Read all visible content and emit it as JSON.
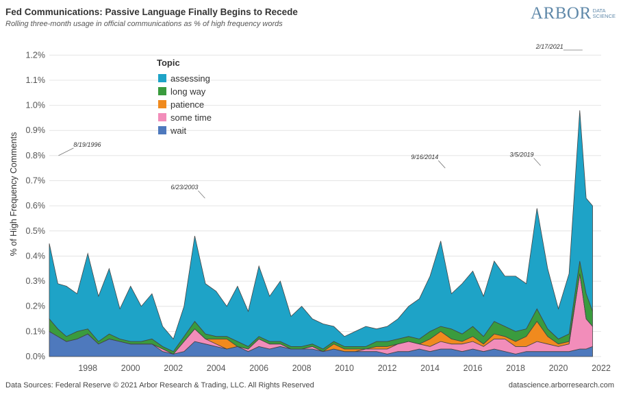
{
  "header": {
    "title": "Fed Communications: Passive Language Finally Begins to Recede",
    "subtitle": "Rolling three-month usage in official communications as % of high frequency words"
  },
  "logo": {
    "main": "ARBOR",
    "sub_top": "DATA",
    "sub_bottom": "SCIENCE",
    "color": "#5f88a9"
  },
  "footer": {
    "source": "Data Sources: Federal Reserve © 2021 Arbor Research & Trading, LLC. All Rights Reserved",
    "site": "datascience.arborresearch.com"
  },
  "chart_data": {
    "type": "area",
    "stacked": true,
    "ylabel": "% of High Frequency Comments",
    "xlabel": "",
    "xlim": [
      1996.2,
      2022.0
    ],
    "ylim": [
      0.0,
      1.25
    ],
    "y_ticks": [
      "0.0%",
      "0.1%",
      "0.2%",
      "0.3%",
      "0.4%",
      "0.5%",
      "0.6%",
      "0.7%",
      "0.8%",
      "0.9%",
      "1.0%",
      "1.1%",
      "1.2%"
    ],
    "x_ticks": [
      "1998",
      "2000",
      "2002",
      "2004",
      "2006",
      "2008",
      "2010",
      "2012",
      "2014",
      "2016",
      "2018",
      "2020",
      "2022"
    ],
    "grid": {
      "horizontal": true,
      "vertical": false
    },
    "legend": {
      "title": "Topic",
      "position": "top-left"
    },
    "x": [
      1996.2,
      1996.6,
      1997.0,
      1997.5,
      1998.0,
      1998.5,
      1999.0,
      1999.5,
      2000.0,
      2000.5,
      2001.0,
      2001.5,
      2002.0,
      2002.5,
      2003.0,
      2003.5,
      2004.0,
      2004.5,
      2005.0,
      2005.5,
      2006.0,
      2006.5,
      2007.0,
      2007.5,
      2008.0,
      2008.5,
      2009.0,
      2009.5,
      2010.0,
      2010.5,
      2011.0,
      2011.5,
      2012.0,
      2012.5,
      2013.0,
      2013.5,
      2014.0,
      2014.5,
      2015.0,
      2015.5,
      2016.0,
      2016.5,
      2017.0,
      2017.5,
      2018.0,
      2018.5,
      2019.0,
      2019.5,
      2020.0,
      2020.5,
      2021.0,
      2021.3,
      2021.6
    ],
    "series": [
      {
        "name": "wait",
        "color": "#4e79bd",
        "values": [
          0.1,
          0.08,
          0.06,
          0.07,
          0.09,
          0.05,
          0.07,
          0.06,
          0.05,
          0.05,
          0.05,
          0.02,
          0.01,
          0.02,
          0.06,
          0.05,
          0.04,
          0.03,
          0.04,
          0.02,
          0.04,
          0.03,
          0.04,
          0.03,
          0.03,
          0.03,
          0.02,
          0.03,
          0.02,
          0.02,
          0.02,
          0.02,
          0.01,
          0.02,
          0.02,
          0.03,
          0.02,
          0.03,
          0.03,
          0.02,
          0.03,
          0.02,
          0.03,
          0.02,
          0.01,
          0.02,
          0.02,
          0.02,
          0.02,
          0.02,
          0.03,
          0.03,
          0.04
        ]
      },
      {
        "name": "some time",
        "color": "#f28dba",
        "values": [
          0.0,
          0.0,
          0.0,
          0.0,
          0.0,
          0.0,
          0.0,
          0.0,
          0.0,
          0.0,
          0.0,
          0.01,
          0.0,
          0.04,
          0.05,
          0.02,
          0.01,
          0.0,
          0.0,
          0.01,
          0.03,
          0.02,
          0.01,
          0.0,
          0.0,
          0.01,
          0.0,
          0.0,
          0.0,
          0.0,
          0.01,
          0.01,
          0.02,
          0.03,
          0.04,
          0.02,
          0.02,
          0.03,
          0.02,
          0.03,
          0.03,
          0.02,
          0.04,
          0.05,
          0.03,
          0.02,
          0.04,
          0.03,
          0.02,
          0.03,
          0.3,
          0.12,
          0.08
        ]
      },
      {
        "name": "patience",
        "color": "#f08a1e",
        "values": [
          0.0,
          0.0,
          0.0,
          0.0,
          0.0,
          0.0,
          0.0,
          0.0,
          0.0,
          0.0,
          0.0,
          0.0,
          0.0,
          0.0,
          0.0,
          0.0,
          0.02,
          0.04,
          0.0,
          0.0,
          0.0,
          0.0,
          0.0,
          0.0,
          0.0,
          0.0,
          0.0,
          0.02,
          0.01,
          0.01,
          0.0,
          0.01,
          0.01,
          0.0,
          0.0,
          0.0,
          0.03,
          0.04,
          0.02,
          0.01,
          0.02,
          0.01,
          0.02,
          0.01,
          0.02,
          0.04,
          0.08,
          0.03,
          0.01,
          0.01,
          0.0,
          0.0,
          0.0
        ]
      },
      {
        "name": "long way",
        "color": "#3a9b3e",
        "values": [
          0.05,
          0.03,
          0.02,
          0.03,
          0.02,
          0.01,
          0.02,
          0.01,
          0.01,
          0.01,
          0.02,
          0.01,
          0.01,
          0.02,
          0.03,
          0.02,
          0.01,
          0.01,
          0.02,
          0.01,
          0.01,
          0.01,
          0.01,
          0.01,
          0.01,
          0.01,
          0.01,
          0.01,
          0.01,
          0.01,
          0.01,
          0.02,
          0.02,
          0.02,
          0.02,
          0.02,
          0.03,
          0.02,
          0.04,
          0.03,
          0.04,
          0.03,
          0.05,
          0.04,
          0.04,
          0.03,
          0.05,
          0.03,
          0.02,
          0.03,
          0.05,
          0.1,
          0.06
        ]
      },
      {
        "name": "assessing",
        "color": "#1ea3c7",
        "values": [
          0.3,
          0.18,
          0.2,
          0.15,
          0.3,
          0.18,
          0.26,
          0.12,
          0.22,
          0.14,
          0.18,
          0.08,
          0.05,
          0.12,
          0.34,
          0.2,
          0.18,
          0.12,
          0.22,
          0.14,
          0.28,
          0.18,
          0.24,
          0.12,
          0.16,
          0.1,
          0.1,
          0.06,
          0.04,
          0.06,
          0.08,
          0.05,
          0.06,
          0.08,
          0.12,
          0.16,
          0.22,
          0.34,
          0.14,
          0.2,
          0.22,
          0.16,
          0.24,
          0.2,
          0.22,
          0.18,
          0.4,
          0.24,
          0.12,
          0.24,
          0.6,
          0.38,
          0.42
        ]
      }
    ],
    "annotations": [
      {
        "text": "8/19/1996",
        "x": 1996.63,
        "y": 0.8
      },
      {
        "text": "6/23/2003",
        "x": 2003.48,
        "y": 0.63
      },
      {
        "text": "9/16/2014",
        "x": 2014.71,
        "y": 0.75
      },
      {
        "text": "3/5/2019",
        "x": 2019.17,
        "y": 0.76
      },
      {
        "text": "2/17/2021",
        "x": 2021.13,
        "y": 1.22
      }
    ]
  }
}
